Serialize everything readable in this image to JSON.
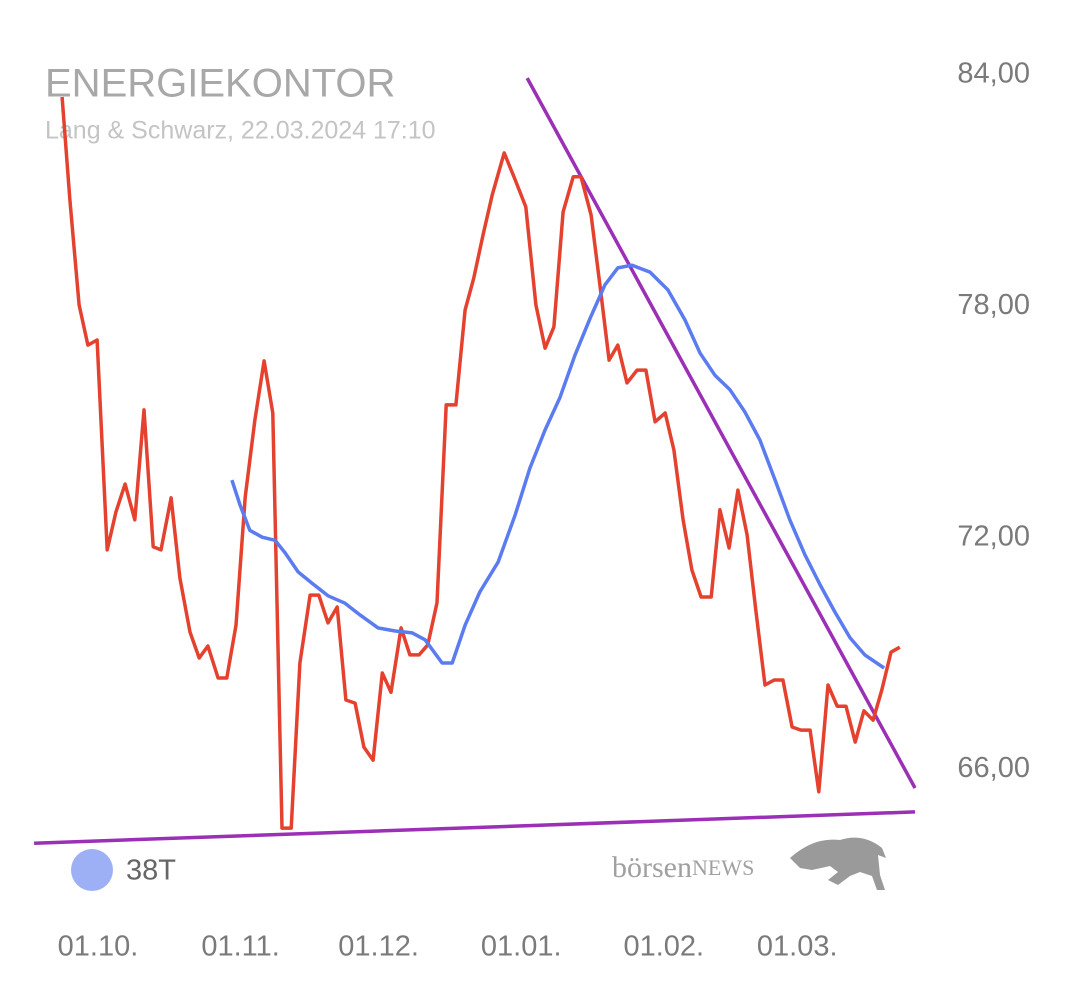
{
  "chart_data": {
    "type": "line",
    "title": "ENERGIEKONTOR",
    "subtitle": "Lang & Schwarz, 22.03.2024 17:10",
    "xlim": [
      -14,
      178
    ],
    "xticks": [
      {
        "value": 0,
        "label": "01.10."
      },
      {
        "value": 31,
        "label": "01.11."
      },
      {
        "value": 61,
        "label": "01.12."
      },
      {
        "value": 92,
        "label": "01.01."
      },
      {
        "value": 123,
        "label": "01.02."
      },
      {
        "value": 152,
        "label": "01.03."
      }
    ],
    "ylim": [
      62.5,
      84.5
    ],
    "yticks": [
      {
        "value": 66,
        "label": "66,00"
      },
      {
        "value": 72,
        "label": "72,00"
      },
      {
        "value": 78,
        "label": "78,00"
      },
      {
        "value": 84,
        "label": "84,00"
      }
    ],
    "grid": false,
    "legend": "bottom-left",
    "series": [
      {
        "color": "#e5412f",
        "x": [
          -7.8,
          -6.1,
          -4.1,
          -2.2,
          -0.2,
          2.0,
          3.9,
          5.9,
          8.0,
          10.0,
          12.0,
          13.7,
          15.9,
          17.8,
          20.0,
          22.0,
          23.9,
          26.1,
          28.0,
          30.0,
          32.0,
          34.1,
          36.1,
          38.0,
          40.0,
          42.0,
          43.9,
          46.1,
          48.0,
          50.0,
          52.0,
          53.9,
          55.9,
          57.8,
          59.8,
          61.8,
          63.7,
          65.9,
          67.8,
          69.8,
          71.7,
          73.7,
          75.7,
          77.8,
          79.8,
          81.7,
          83.7,
          85.7,
          88.3,
          90.7,
          93.0,
          95.2,
          97.2,
          99.1,
          101.1,
          103.3,
          105.0,
          107.2,
          109.1,
          111.1,
          113.0,
          115.0,
          117.2,
          119.1,
          121.1,
          123.3,
          125.2,
          127.2,
          129.1,
          131.1,
          133.3,
          135.2,
          137.2,
          139.1,
          141.1,
          143.0,
          145.0,
          147.0,
          148.9,
          150.9,
          152.8,
          154.8,
          156.7,
          158.7,
          160.7,
          162.6,
          164.6,
          166.5,
          168.5,
          170.4,
          172.4,
          174.3
        ],
        "values": [
          83.43,
          80.76,
          78.04,
          77.0,
          77.13,
          71.69,
          72.67,
          73.4,
          72.47,
          75.32,
          71.77,
          71.69,
          73.04,
          70.96,
          69.56,
          68.89,
          69.2,
          68.37,
          68.37,
          69.74,
          73.06,
          75.06,
          76.59,
          75.24,
          64.48,
          64.48,
          68.76,
          70.52,
          70.52,
          69.8,
          70.21,
          67.8,
          67.72,
          66.58,
          66.24,
          68.5,
          68.0,
          69.67,
          68.97,
          68.97,
          69.23,
          70.32,
          75.45,
          75.45,
          77.91,
          78.74,
          79.85,
          80.89,
          81.98,
          81.28,
          80.58,
          78.04,
          76.92,
          77.47,
          80.45,
          81.36,
          81.36,
          80.37,
          78.56,
          76.61,
          77.0,
          76.02,
          76.35,
          76.35,
          75.01,
          75.24,
          74.28,
          72.47,
          71.17,
          70.47,
          70.47,
          72.73,
          71.74,
          73.24,
          72.08,
          70.13,
          68.19,
          68.32,
          68.32,
          67.1,
          67.02,
          67.02,
          65.42,
          68.19,
          67.64,
          67.64,
          66.71,
          67.52,
          67.28,
          68.06,
          69.04,
          69.17
        ]
      },
      {
        "name": "38T",
        "color": "#5b7cf0",
        "x": [
          29.1,
          30.9,
          33.0,
          35.7,
          38.5,
          40.7,
          43.5,
          46.5,
          50.0,
          53.7,
          57.0,
          60.9,
          64.6,
          68.3,
          71.1,
          74.8,
          77.0,
          79.8,
          83.0,
          87.0,
          90.7,
          93.9,
          97.2,
          100.4,
          103.7,
          107.0,
          110.2,
          113.0,
          116.1,
          120.0,
          123.9,
          127.6,
          130.9,
          134.1,
          137.4,
          140.6,
          143.9,
          147.2,
          150.4,
          153.7,
          157.0,
          160.2,
          163.5,
          166.7,
          170.9
        ],
        "values": [
          73.5,
          72.85,
          72.2,
          72.02,
          71.94,
          71.61,
          71.12,
          70.83,
          70.5,
          70.31,
          70.0,
          69.67,
          69.59,
          69.54,
          69.36,
          68.76,
          68.76,
          69.74,
          70.6,
          71.38,
          72.6,
          73.81,
          74.8,
          75.63,
          76.74,
          77.7,
          78.56,
          79.0,
          79.07,
          78.89,
          78.43,
          77.65,
          76.79,
          76.22,
          75.84,
          75.27,
          74.54,
          73.5,
          72.47,
          71.56,
          70.78,
          70.08,
          69.41,
          68.97,
          68.63
        ]
      }
    ],
    "trendlines": [
      {
        "color": "#9b2fb5",
        "x": [
          93.3,
          177.6
        ],
        "values": [
          83.92,
          65.52
        ]
      },
      {
        "color": "#9b2fb5",
        "x": [
          -13.9,
          177.6
        ],
        "values": [
          64.09,
          64.9
        ]
      }
    ],
    "watermark": {
      "part1": "börsen",
      "part2": "NEWS"
    }
  }
}
